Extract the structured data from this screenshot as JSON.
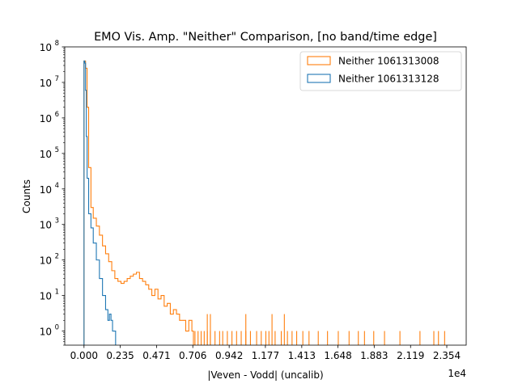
{
  "chart_data": {
    "type": "histogram",
    "title": "EMO Vis. Amp. \"Neither\" Comparison, [no band/time edge]",
    "xlabel": "|Veven - Vodd| (uncalib)",
    "ylabel": "Counts",
    "x_scale_note": "1e4",
    "x_range": [
      -0.125,
      2.48
    ],
    "y_scale": "log",
    "y_range": [
      0.4,
      100000000
    ],
    "x_ticks": [
      0.0,
      0.235,
      0.471,
      0.706,
      0.942,
      1.177,
      1.413,
      1.648,
      1.883,
      2.119,
      2.354
    ],
    "x_tick_labels": [
      "0.000",
      "0.235",
      "0.471",
      "0.706",
      "0.942",
      "1.177",
      "1.413",
      "1.648",
      "1.883",
      "2.119",
      "2.354"
    ],
    "y_ticks": [
      1,
      10,
      100,
      1000,
      10000,
      100000,
      1000000,
      10000000,
      100000000
    ],
    "y_tick_labels": [
      {
        "base": "10",
        "exp": "0"
      },
      {
        "base": "10",
        "exp": "1"
      },
      {
        "base": "10",
        "exp": "2"
      },
      {
        "base": "10",
        "exp": "3"
      },
      {
        "base": "10",
        "exp": "4"
      },
      {
        "base": "10",
        "exp": "5"
      },
      {
        "base": "10",
        "exp": "6"
      },
      {
        "base": "10",
        "exp": "7"
      },
      {
        "base": "10",
        "exp": "8"
      }
    ],
    "legend_position": "top-right",
    "grid": false,
    "series": [
      {
        "name": "Neither 1061313008",
        "color": "#ff7f0e",
        "x": [
          0.0,
          0.01,
          0.02,
          0.03,
          0.045,
          0.06,
          0.08,
          0.1,
          0.12,
          0.14,
          0.16,
          0.18,
          0.2,
          0.22,
          0.24,
          0.26,
          0.28,
          0.3,
          0.32,
          0.34,
          0.36,
          0.38,
          0.4,
          0.42,
          0.44,
          0.46,
          0.48,
          0.5,
          0.52,
          0.54,
          0.56,
          0.58,
          0.6,
          0.62,
          0.64,
          0.66,
          0.68,
          0.7
        ],
        "counts": [
          40000000,
          25000000,
          2000000,
          40000,
          3000,
          1500,
          900,
          500,
          250,
          150,
          90,
          50,
          30,
          25,
          22,
          25,
          30,
          35,
          40,
          45,
          30,
          25,
          20,
          15,
          10,
          15,
          8,
          10,
          5,
          6,
          3,
          4,
          3,
          2,
          2,
          1,
          2,
          1
        ],
        "sparse_singles_x": [
          0.72,
          0.74,
          0.76,
          0.78,
          0.8,
          0.82,
          0.85,
          0.88,
          0.9,
          0.93,
          0.96,
          0.99,
          1.02,
          1.05,
          1.08,
          1.12,
          1.15,
          1.18,
          1.2,
          1.24,
          1.28,
          1.32,
          1.35,
          1.38,
          1.42,
          1.46,
          1.52,
          1.58,
          1.65,
          1.72,
          1.78,
          1.82,
          1.88,
          1.95,
          2.05,
          2.18,
          2.27,
          2.3,
          2.34
        ],
        "sparse_tall_x": [
          0.8,
          0.82,
          1.05,
          1.22,
          1.3
        ],
        "sparse_tall_count": 3
      },
      {
        "name": "Neither 1061313128",
        "color": "#1f77b4",
        "x": [
          0.0,
          0.005,
          0.01,
          0.015,
          0.02,
          0.03,
          0.045,
          0.06,
          0.08,
          0.1,
          0.12,
          0.14,
          0.155,
          0.165,
          0.175,
          0.185,
          0.195
        ],
        "counts": [
          40000000,
          35000000,
          6000000,
          300000,
          20000,
          2000,
          800,
          300,
          100,
          30,
          10,
          4,
          2,
          3,
          2,
          1,
          1
        ]
      }
    ]
  }
}
